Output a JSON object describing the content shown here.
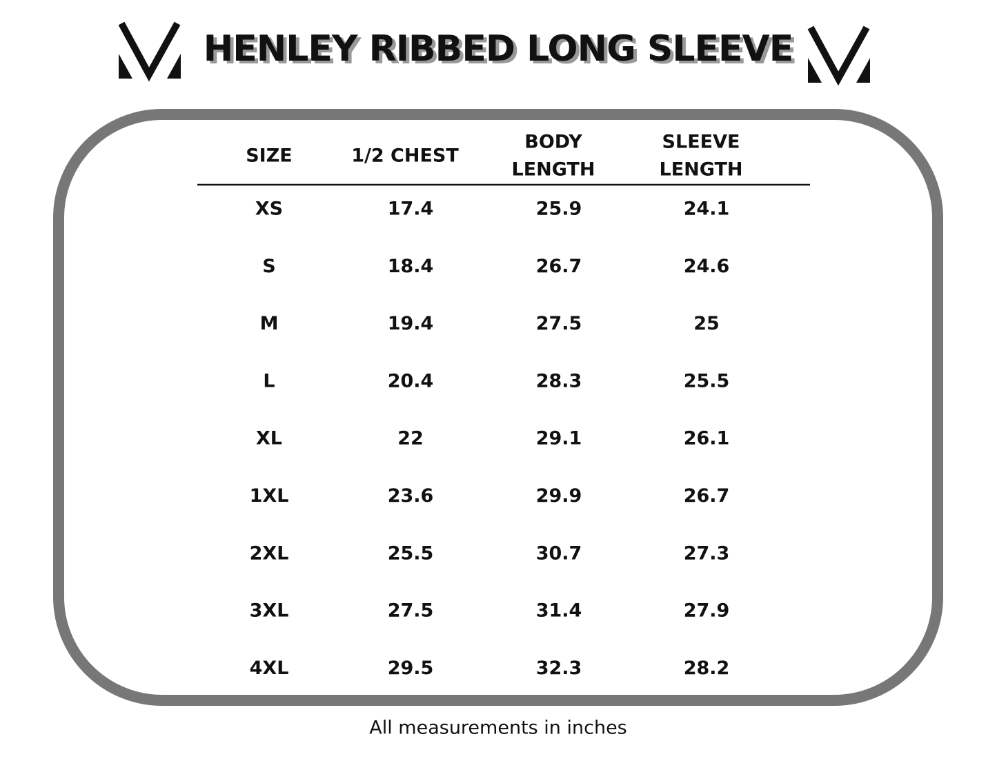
{
  "header": {
    "title": "HENLEY RIBBED LONG SLEEVE"
  },
  "table": {
    "columns": [
      [
        "SIZE"
      ],
      [
        "1/2 CHEST"
      ],
      [
        "BODY",
        "LENGTH"
      ],
      [
        "SLEEVE",
        "LENGTH"
      ]
    ],
    "rows": [
      [
        "XS",
        "17.4",
        "25.9",
        "24.1"
      ],
      [
        "S",
        "18.4",
        "26.7",
        "24.6"
      ],
      [
        "M",
        "19.4",
        "27.5",
        "25"
      ],
      [
        "L",
        "20.4",
        "28.3",
        "25.5"
      ],
      [
        "XL",
        "22",
        "29.1",
        "26.1"
      ],
      [
        "1XL",
        "23.6",
        "29.9",
        "26.7"
      ],
      [
        "2XL",
        "25.5",
        "30.7",
        "27.3"
      ],
      [
        "3XL",
        "27.5",
        "31.4",
        "27.9"
      ],
      [
        "4XL",
        "29.5",
        "32.3",
        "28.2"
      ]
    ]
  },
  "footer": {
    "note": "All measurements in inches"
  }
}
